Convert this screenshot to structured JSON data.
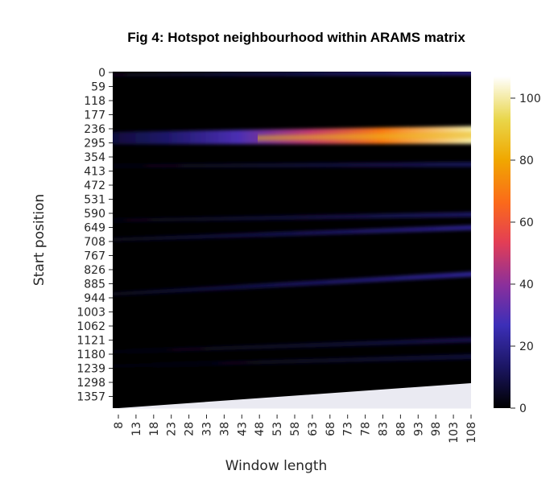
{
  "chart_data": {
    "type": "heatmap",
    "title": "Fig 4: Hotspot neighbourhood within ARAMS matrix",
    "xlabel": "Window length",
    "ylabel": "Start position",
    "x_ticks": [
      "8",
      "13",
      "18",
      "23",
      "28",
      "33",
      "38",
      "43",
      "48",
      "53",
      "58",
      "63",
      "68",
      "73",
      "78",
      "83",
      "88",
      "93",
      "98",
      "103",
      "108"
    ],
    "y_ticks": [
      "0",
      "59",
      "118",
      "177",
      "236",
      "295",
      "354",
      "413",
      "472",
      "531",
      "590",
      "649",
      "708",
      "767",
      "826",
      "885",
      "944",
      "1003",
      "1062",
      "1121",
      "1180",
      "1239",
      "1298",
      "1357"
    ],
    "xlim": [
      8,
      108
    ],
    "ylim": [
      0,
      1400
    ],
    "colorbar": {
      "min": 0,
      "max": 107,
      "ticks": [
        "0",
        "20",
        "40",
        "60",
        "80",
        "100"
      ],
      "colormap": "CMRmap"
    },
    "hotspot": {
      "start_position_center": 275,
      "start_position_range": [
        236,
        310
      ],
      "peak_value": 100,
      "peak_window_length": 108
    },
    "bands": [
      {
        "start_position": 10,
        "end_start_position": 2,
        "intensity": 18
      },
      {
        "start_position": 275,
        "end_start_position": 262,
        "intensity": 100
      },
      {
        "start_position": 392,
        "end_start_position": 385,
        "intensity": 12
      },
      {
        "start_position": 620,
        "end_start_position": 595,
        "intensity": 14
      },
      {
        "start_position": 700,
        "end_start_position": 650,
        "intensity": 20
      },
      {
        "start_position": 928,
        "end_start_position": 845,
        "intensity": 22
      },
      {
        "start_position": 1170,
        "end_start_position": 1120,
        "intensity": 10
      },
      {
        "start_position": 1230,
        "end_start_position": 1190,
        "intensity": 8
      }
    ],
    "missing_region": "lower-right triangle (start position + window length beyond sequence end)",
    "background_color": "#000000",
    "missing_color": "#eaeaf2"
  }
}
